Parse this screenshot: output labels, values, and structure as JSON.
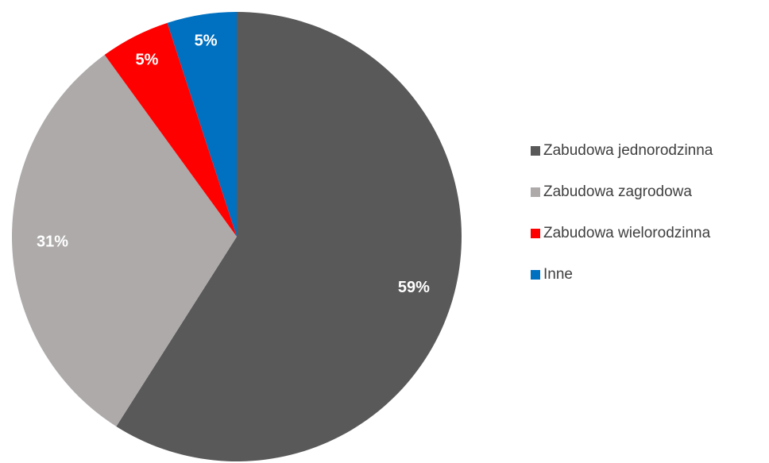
{
  "chart_data": {
    "type": "pie",
    "categories": [
      "Zabudowa jednorodzinna",
      "Zabudowa zagrodowa",
      "Zabudowa wielorodzinna",
      "Inne"
    ],
    "values": [
      59,
      31,
      5,
      5
    ],
    "value_labels": [
      "59%",
      "31%",
      "5%",
      "5%"
    ],
    "colors": [
      "#595959",
      "#aeaaaa",
      "#ff0000",
      "#0070c0"
    ],
    "legend": "right"
  }
}
